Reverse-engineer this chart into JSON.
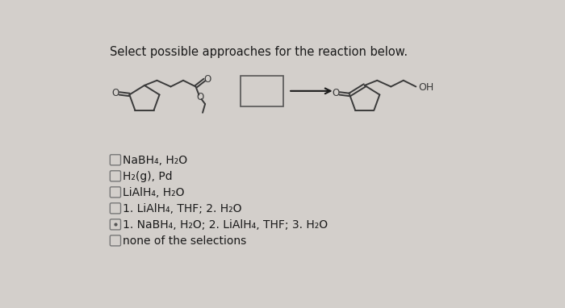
{
  "title": "Select possible approaches for the reaction below.",
  "bg_color": "#d3cfcb",
  "options": [
    "NaBH₄, H₂O",
    "H₂(g), Pd",
    "LiAlH₄, H₂O",
    "1. LiAlH₄, THF; 2. H₂O",
    "1. NaBH₄, H₂O; 2. LiAlH₄, THF; 3. H₂O",
    "none of the selections"
  ],
  "title_fontsize": 10.5,
  "option_fontsize": 10,
  "text_color": "#1a1a1a",
  "mol_color": "#3a3a3a",
  "checkbox_color": "#888888",
  "arrow_color": "#1a1a1a",
  "box_color": "#555555"
}
